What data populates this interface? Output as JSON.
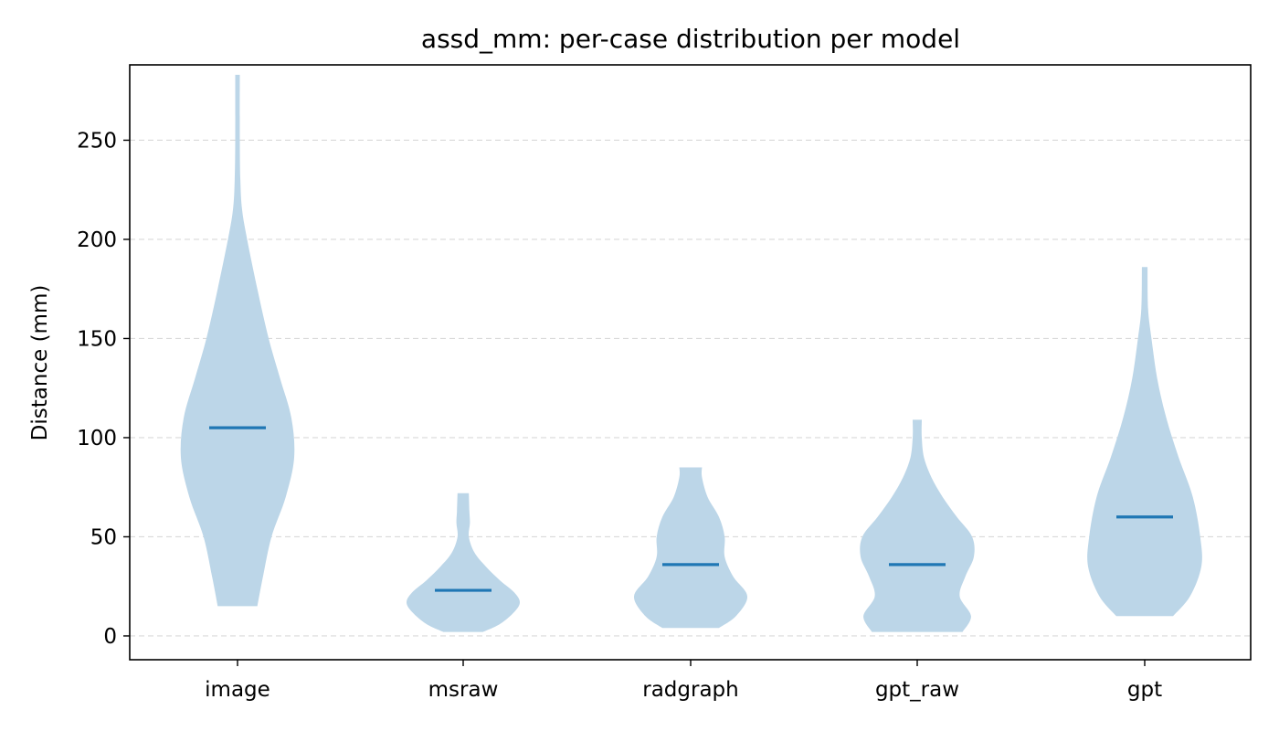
{
  "chart_data": {
    "type": "violin",
    "title": "assd_mm: per-case distribution per model",
    "xlabel": "",
    "ylabel": "Distance (mm)",
    "ylim": [
      -12,
      288
    ],
    "yticks": [
      0,
      50,
      100,
      150,
      200,
      250
    ],
    "grid": "y-dashed",
    "colors": {
      "body": "#bcd6e8",
      "median": "#1f77b4"
    },
    "categories": [
      "image",
      "msraw",
      "radgraph",
      "gpt_raw",
      "gpt"
    ],
    "series": [
      {
        "category": "image",
        "min": 15,
        "max": 283,
        "median": 105,
        "profile": [
          [
            15,
            0.35
          ],
          [
            30,
            0.45
          ],
          [
            50,
            0.6
          ],
          [
            70,
            0.85
          ],
          [
            90,
            1.0
          ],
          [
            110,
            0.95
          ],
          [
            130,
            0.75
          ],
          [
            150,
            0.55
          ],
          [
            175,
            0.35
          ],
          [
            200,
            0.17
          ],
          [
            215,
            0.08
          ],
          [
            230,
            0.05
          ],
          [
            250,
            0.04
          ],
          [
            283,
            0.04
          ]
        ]
      },
      {
        "category": "msraw",
        "min": 2,
        "max": 72,
        "median": 23,
        "profile": [
          [
            2,
            0.35
          ],
          [
            6,
            0.65
          ],
          [
            12,
            0.9
          ],
          [
            17,
            1.0
          ],
          [
            22,
            0.9
          ],
          [
            28,
            0.65
          ],
          [
            35,
            0.4
          ],
          [
            42,
            0.2
          ],
          [
            50,
            0.1
          ],
          [
            57,
            0.12
          ],
          [
            63,
            0.11
          ],
          [
            72,
            0.1
          ]
        ]
      },
      {
        "category": "radgraph",
        "min": 4,
        "max": 85,
        "median": 36,
        "profile": [
          [
            4,
            0.5
          ],
          [
            10,
            0.8
          ],
          [
            20,
            1.0
          ],
          [
            30,
            0.75
          ],
          [
            40,
            0.6
          ],
          [
            50,
            0.6
          ],
          [
            60,
            0.5
          ],
          [
            70,
            0.3
          ],
          [
            80,
            0.2
          ],
          [
            85,
            0.2
          ]
        ]
      },
      {
        "category": "gpt_raw",
        "min": 2,
        "max": 109,
        "median": 36,
        "profile": [
          [
            2,
            0.8
          ],
          [
            10,
            0.95
          ],
          [
            20,
            0.75
          ],
          [
            30,
            0.85
          ],
          [
            40,
            1.0
          ],
          [
            50,
            0.97
          ],
          [
            60,
            0.7
          ],
          [
            70,
            0.45
          ],
          [
            80,
            0.25
          ],
          [
            90,
            0.12
          ],
          [
            100,
            0.08
          ],
          [
            109,
            0.08
          ]
        ]
      },
      {
        "category": "gpt",
        "min": 10,
        "max": 186,
        "median": 60,
        "profile": [
          [
            10,
            0.5
          ],
          [
            20,
            0.8
          ],
          [
            35,
            1.0
          ],
          [
            50,
            0.98
          ],
          [
            70,
            0.85
          ],
          [
            90,
            0.6
          ],
          [
            110,
            0.38
          ],
          [
            130,
            0.22
          ],
          [
            150,
            0.12
          ],
          [
            165,
            0.06
          ],
          [
            186,
            0.05
          ]
        ]
      }
    ]
  }
}
